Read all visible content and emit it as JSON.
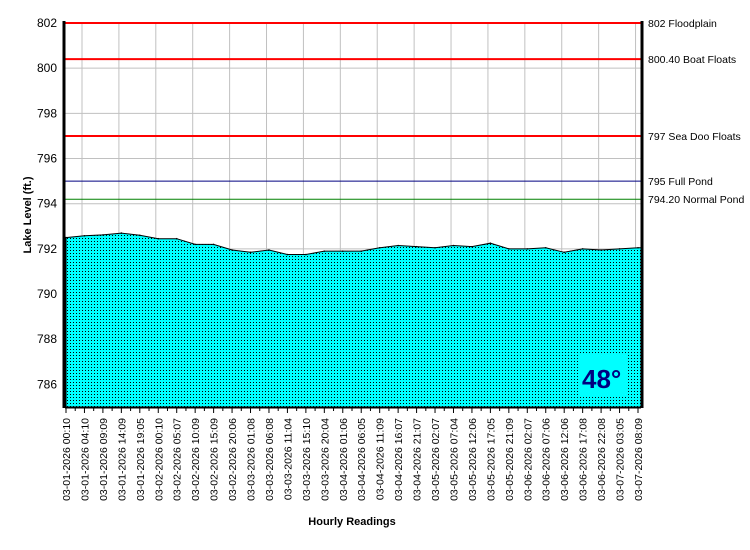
{
  "chart_data": {
    "type": "area",
    "title": "",
    "xlabel": "Hourly Readings",
    "ylabel": "Lake Level (ft.)",
    "ylim": [
      785,
      802
    ],
    "yticks": [
      786,
      788,
      790,
      792,
      794,
      796,
      798,
      800,
      802
    ],
    "grid": true,
    "x": [
      "03-01-2026 00:10",
      "03-01-2026 04:10",
      "03-01-2026 09:09",
      "03-01-2026 14:09",
      "03-01-2026 19:05",
      "03-02-2026 00:10",
      "03-02-2026 05:07",
      "03-02-2026 10:09",
      "03-02-2026 15:09",
      "03-02-2026 20:06",
      "03-03-2026 01:08",
      "03-03-2026 06:08",
      "03-03-2026 11:04",
      "03-03-2026 15:10",
      "03-03-2026 20:04",
      "03-04-2026 01:06",
      "03-04-2026 06:05",
      "03-04-2026 11:09",
      "03-04-2026 16:07",
      "03-04-2026 21:07",
      "03-05-2026 02:07",
      "03-05-2026 07:04",
      "03-05-2026 12:06",
      "03-05-2026 17:05",
      "03-05-2026 21:09",
      "03-06-2026 02:07",
      "03-06-2026 07:06",
      "03-06-2026 12:06",
      "03-06-2026 17:08",
      "03-06-2026 22:08",
      "03-07-2026 03:05",
      "03-07-2026 08:09"
    ],
    "series": [
      {
        "values": [
          792.5,
          792.58,
          792.62,
          792.7,
          792.6,
          792.45,
          792.45,
          792.2,
          792.2,
          791.95,
          791.85,
          791.95,
          791.75,
          791.75,
          791.9,
          791.9,
          791.9,
          792.05,
          792.15,
          792.1,
          792.05,
          792.15,
          792.1,
          792.25,
          792.0,
          792.0,
          792.05,
          791.85,
          792.0,
          791.95,
          792.0,
          792.05
        ],
        "color": "#00FFFF"
      }
    ],
    "reference_lines": [
      {
        "value": 802,
        "label": "802 Floodplain",
        "color": "#FF0000"
      },
      {
        "value": 800.4,
        "label": "800.40 Boat Floats",
        "color": "#FF0000"
      },
      {
        "value": 797,
        "label": "797 Sea Doo Floats",
        "color": "#FF0000"
      },
      {
        "value": 795,
        "label": "795 Full Pond",
        "color": "#000080"
      },
      {
        "value": 794.2,
        "label": "794.20 Normal Pond",
        "color": "#008000"
      }
    ],
    "annotation": {
      "text": "48°",
      "color": "#000080"
    }
  }
}
